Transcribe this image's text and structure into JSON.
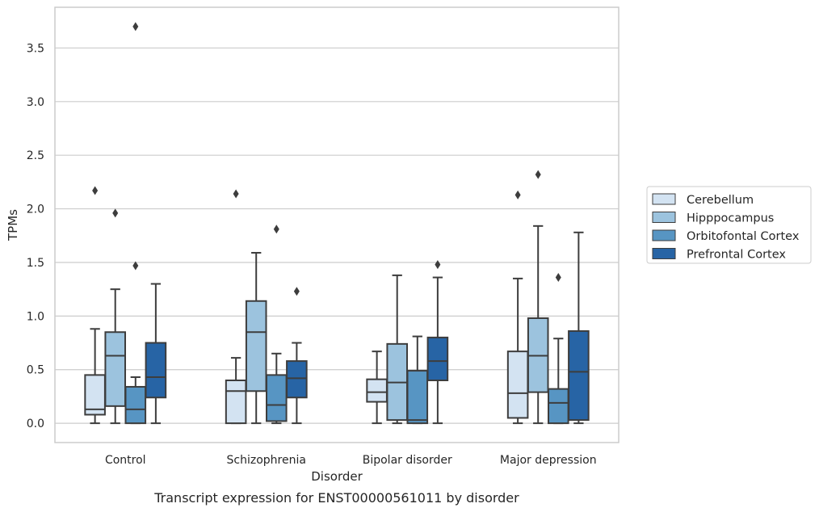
{
  "chart_data": {
    "type": "box",
    "caption": "Transcript expression for ENST00000561011 by disorder",
    "xlabel": "Disorder",
    "ylabel": "TPMs",
    "ylim": [
      -0.18,
      3.88
    ],
    "yticks": [
      0.0,
      0.5,
      1.0,
      1.5,
      2.0,
      2.5,
      3.0,
      3.5
    ],
    "ytick_labels": [
      "0.0",
      "0.5",
      "1.0",
      "1.5",
      "2.0",
      "2.5",
      "3.0",
      "3.5"
    ],
    "grid": "horizontal",
    "legend_position": "right",
    "categories": [
      "Control",
      "Schizophrenia",
      "Bipolar disorder",
      "Major depression"
    ],
    "series": [
      {
        "name": "Cerebellum",
        "color": "#d3e3f2",
        "boxes": [
          {
            "q1": 0.08,
            "median": 0.13,
            "q3": 0.45,
            "whisker_low": 0.0,
            "whisker_high": 0.88,
            "outliers": [
              2.17
            ]
          },
          {
            "q1": 0.0,
            "median": 0.3,
            "q3": 0.4,
            "whisker_low": 0.0,
            "whisker_high": 0.61,
            "outliers": [
              2.14
            ]
          },
          {
            "q1": 0.2,
            "median": 0.29,
            "q3": 0.41,
            "whisker_low": 0.0,
            "whisker_high": 0.67,
            "outliers": []
          },
          {
            "q1": 0.05,
            "median": 0.28,
            "q3": 0.67,
            "whisker_low": 0.0,
            "whisker_high": 1.35,
            "outliers": [
              2.13
            ]
          }
        ]
      },
      {
        "name": "Hipppocampus",
        "color": "#9cc3de",
        "boxes": [
          {
            "q1": 0.16,
            "median": 0.63,
            "q3": 0.85,
            "whisker_low": 0.0,
            "whisker_high": 1.25,
            "outliers": [
              1.96
            ]
          },
          {
            "q1": 0.3,
            "median": 0.85,
            "q3": 1.14,
            "whisker_low": 0.0,
            "whisker_high": 1.59,
            "outliers": []
          },
          {
            "q1": 0.03,
            "median": 0.38,
            "q3": 0.74,
            "whisker_low": 0.0,
            "whisker_high": 1.38,
            "outliers": []
          },
          {
            "q1": 0.29,
            "median": 0.63,
            "q3": 0.98,
            "whisker_low": 0.0,
            "whisker_high": 1.84,
            "outliers": [
              2.32
            ]
          }
        ]
      },
      {
        "name": "Orbitofontal Cortex",
        "color": "#5795c3",
        "boxes": [
          {
            "q1": 0.0,
            "median": 0.13,
            "q3": 0.34,
            "whisker_low": 0.0,
            "whisker_high": 0.43,
            "outliers": [
              1.47,
              3.7
            ]
          },
          {
            "q1": 0.02,
            "median": 0.17,
            "q3": 0.45,
            "whisker_low": 0.0,
            "whisker_high": 0.65,
            "outliers": [
              1.81
            ]
          },
          {
            "q1": 0.0,
            "median": 0.03,
            "q3": 0.49,
            "whisker_low": 0.0,
            "whisker_high": 0.81,
            "outliers": []
          },
          {
            "q1": 0.0,
            "median": 0.19,
            "q3": 0.32,
            "whisker_low": 0.0,
            "whisker_high": 0.79,
            "outliers": [
              1.36
            ]
          }
        ]
      },
      {
        "name": "Prefrontal Cortex",
        "color": "#2764a5",
        "boxes": [
          {
            "q1": 0.24,
            "median": 0.43,
            "q3": 0.75,
            "whisker_low": 0.0,
            "whisker_high": 1.3,
            "outliers": []
          },
          {
            "q1": 0.24,
            "median": 0.42,
            "q3": 0.58,
            "whisker_low": 0.0,
            "whisker_high": 0.75,
            "outliers": [
              1.23
            ]
          },
          {
            "q1": 0.4,
            "median": 0.58,
            "q3": 0.8,
            "whisker_low": 0.0,
            "whisker_high": 1.36,
            "outliers": [
              1.48
            ]
          },
          {
            "q1": 0.03,
            "median": 0.48,
            "q3": 0.86,
            "whisker_low": 0.0,
            "whisker_high": 1.78,
            "outliers": []
          }
        ]
      }
    ],
    "colors": {
      "frame": "#cccccc",
      "grid": "#cccccc",
      "box_edge": "#3d3d3d",
      "outlier": "#3d3d3d",
      "text": "#262626"
    }
  }
}
